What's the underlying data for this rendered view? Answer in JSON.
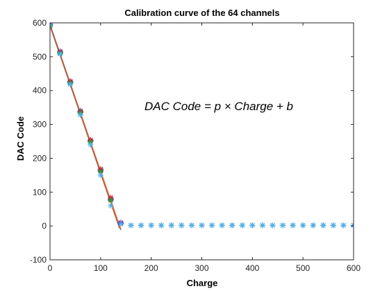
{
  "chart_data": {
    "type": "scatter",
    "title": "Calibration curve of the 64 channels",
    "xlabel": "Charge",
    "ylabel": "DAC Code",
    "xlim": [
      0,
      600
    ],
    "ylim": [
      -100,
      600
    ],
    "x_ticks": [
      0,
      100,
      200,
      300,
      400,
      500,
      600
    ],
    "y_ticks": [
      -100,
      0,
      100,
      200,
      300,
      400,
      500,
      600
    ],
    "x_tick_labels": [
      "0",
      "100",
      "200",
      "300",
      "400",
      "500",
      "600"
    ],
    "y_tick_labels": [
      "-100",
      "0",
      "100",
      "200",
      "300",
      "400",
      "500",
      "600"
    ],
    "grid": false,
    "annotation": "DAC Code = p × Charge + b",
    "marker": "asterisk",
    "series": [
      {
        "color": "#1f3fbf",
        "x": [
          0,
          20,
          40,
          60,
          80,
          100,
          120,
          140,
          160,
          180,
          200,
          220,
          240,
          260,
          280,
          300,
          320,
          340,
          360,
          380,
          400,
          420,
          440,
          460,
          480,
          500,
          520,
          540,
          560,
          580,
          600
        ],
        "y": [
          594,
          516,
          426,
          340,
          253,
          166,
          80,
          8,
          2,
          2,
          2,
          2,
          2,
          2,
          2,
          2,
          2,
          2,
          2,
          2,
          2,
          2,
          2,
          2,
          2,
          2,
          2,
          2,
          2,
          2,
          2
        ]
      },
      {
        "color": "#7a1fa2",
        "x": [
          0,
          20,
          40,
          60,
          80,
          100,
          120,
          140
        ],
        "y": [
          596,
          512,
          424,
          336,
          251,
          163,
          78,
          10
        ]
      },
      {
        "color": "#d62728",
        "x": [
          0,
          20,
          40,
          60,
          80,
          100,
          120
        ],
        "y": [
          592,
          514,
          428,
          338,
          254,
          168,
          84
        ]
      },
      {
        "color": "#2ca02c",
        "x": [
          0,
          20,
          40,
          60,
          80,
          100,
          120
        ],
        "y": [
          590,
          510,
          422,
          334,
          248,
          160,
          76
        ]
      },
      {
        "color": "#4fb5e8",
        "x": [
          0,
          20,
          40,
          60,
          80,
          100,
          120,
          140,
          160,
          180,
          200,
          220,
          240,
          260,
          280,
          300,
          320,
          340,
          360,
          380,
          400,
          420,
          440,
          460,
          480,
          500,
          520,
          540,
          560,
          580,
          600
        ],
        "y": [
          593,
          508,
          418,
          328,
          240,
          150,
          60,
          6,
          2,
          2,
          2,
          2,
          2,
          2,
          2,
          2,
          2,
          2,
          2,
          2,
          2,
          2,
          2,
          2,
          2,
          2,
          2,
          2,
          2,
          2,
          2
        ]
      }
    ],
    "fit_lines": [
      {
        "color": "#1f3fbf",
        "x": [
          0,
          140
        ],
        "y": [
          596,
          -12
        ]
      },
      {
        "color": "#d62728",
        "x": [
          0,
          140
        ],
        "y": [
          594,
          -10
        ]
      },
      {
        "color": "#2ca02c",
        "x": [
          0,
          138
        ],
        "y": [
          592,
          -8
        ]
      },
      {
        "color": "#ff7f0e",
        "x": [
          0,
          139
        ],
        "y": [
          593,
          -9
        ]
      },
      {
        "color": "#8c564b",
        "x": [
          0,
          137
        ],
        "y": [
          590,
          -6
        ]
      }
    ]
  }
}
